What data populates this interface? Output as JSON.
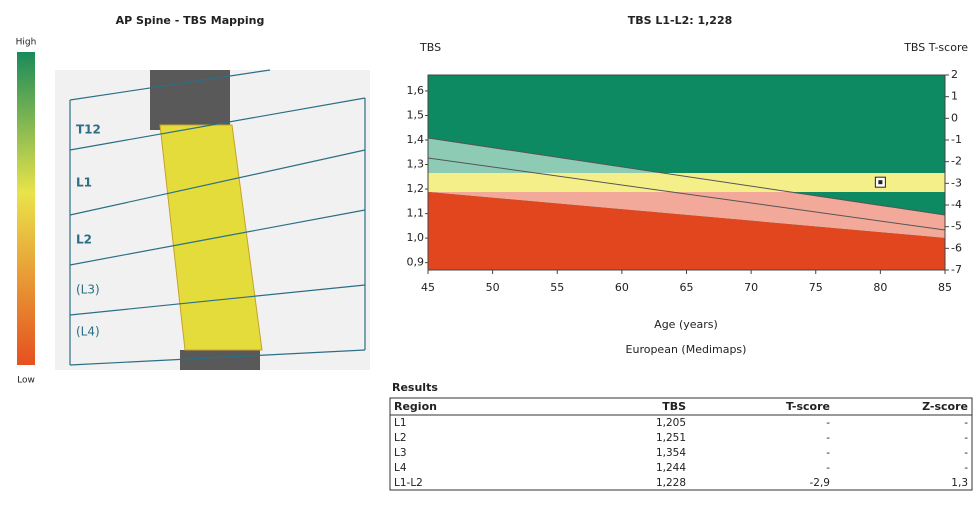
{
  "left_panel": {
    "title": "AP Spine - TBS Mapping",
    "scale_high": "High",
    "scale_low": "Low",
    "vertebrae": [
      "T12",
      "L1",
      "L2",
      "(L3)",
      "(L4)"
    ]
  },
  "chart_data": {
    "type": "scatter",
    "title": "TBS L1-L2: 1,228",
    "y_label": "TBS",
    "y2_label": "TBS T-score",
    "x_label": "Age (years)",
    "subtitle": "European (Medimaps)",
    "x": [
      80
    ],
    "values": [
      1.228
    ],
    "xlim": [
      45,
      85
    ],
    "xticks": [
      45,
      50,
      55,
      60,
      65,
      70,
      75,
      80,
      85
    ],
    "ylim": [
      0.87,
      1.665
    ],
    "yticks": [
      {
        "value": 0.9,
        "label": "0,9"
      },
      {
        "value": 1.0,
        "label": "1,0"
      },
      {
        "value": 1.1,
        "label": "1,1"
      },
      {
        "value": 1.2,
        "label": "1,2"
      },
      {
        "value": 1.3,
        "label": "1,3"
      },
      {
        "value": 1.4,
        "label": "1,4"
      },
      {
        "value": 1.5,
        "label": "1,5"
      },
      {
        "value": 1.6,
        "label": "1,6"
      }
    ],
    "y2lim": [
      -7,
      2
    ],
    "y2ticks": [
      2,
      1,
      0,
      -1,
      -2,
      -3,
      -4,
      -5,
      -6,
      -7
    ]
  },
  "results": {
    "title": "Results",
    "columns": [
      "Region",
      "TBS",
      "T-score",
      "Z-score"
    ],
    "rows": [
      [
        "L1",
        "1,205",
        "-",
        "-"
      ],
      [
        "L2",
        "1,251",
        "-",
        "-"
      ],
      [
        "L3",
        "1,354",
        "-",
        "-"
      ],
      [
        "L4",
        "1,244",
        "-",
        "-"
      ],
      [
        "L1-L2",
        "1,228",
        "-2,9",
        "1,3"
      ]
    ]
  }
}
